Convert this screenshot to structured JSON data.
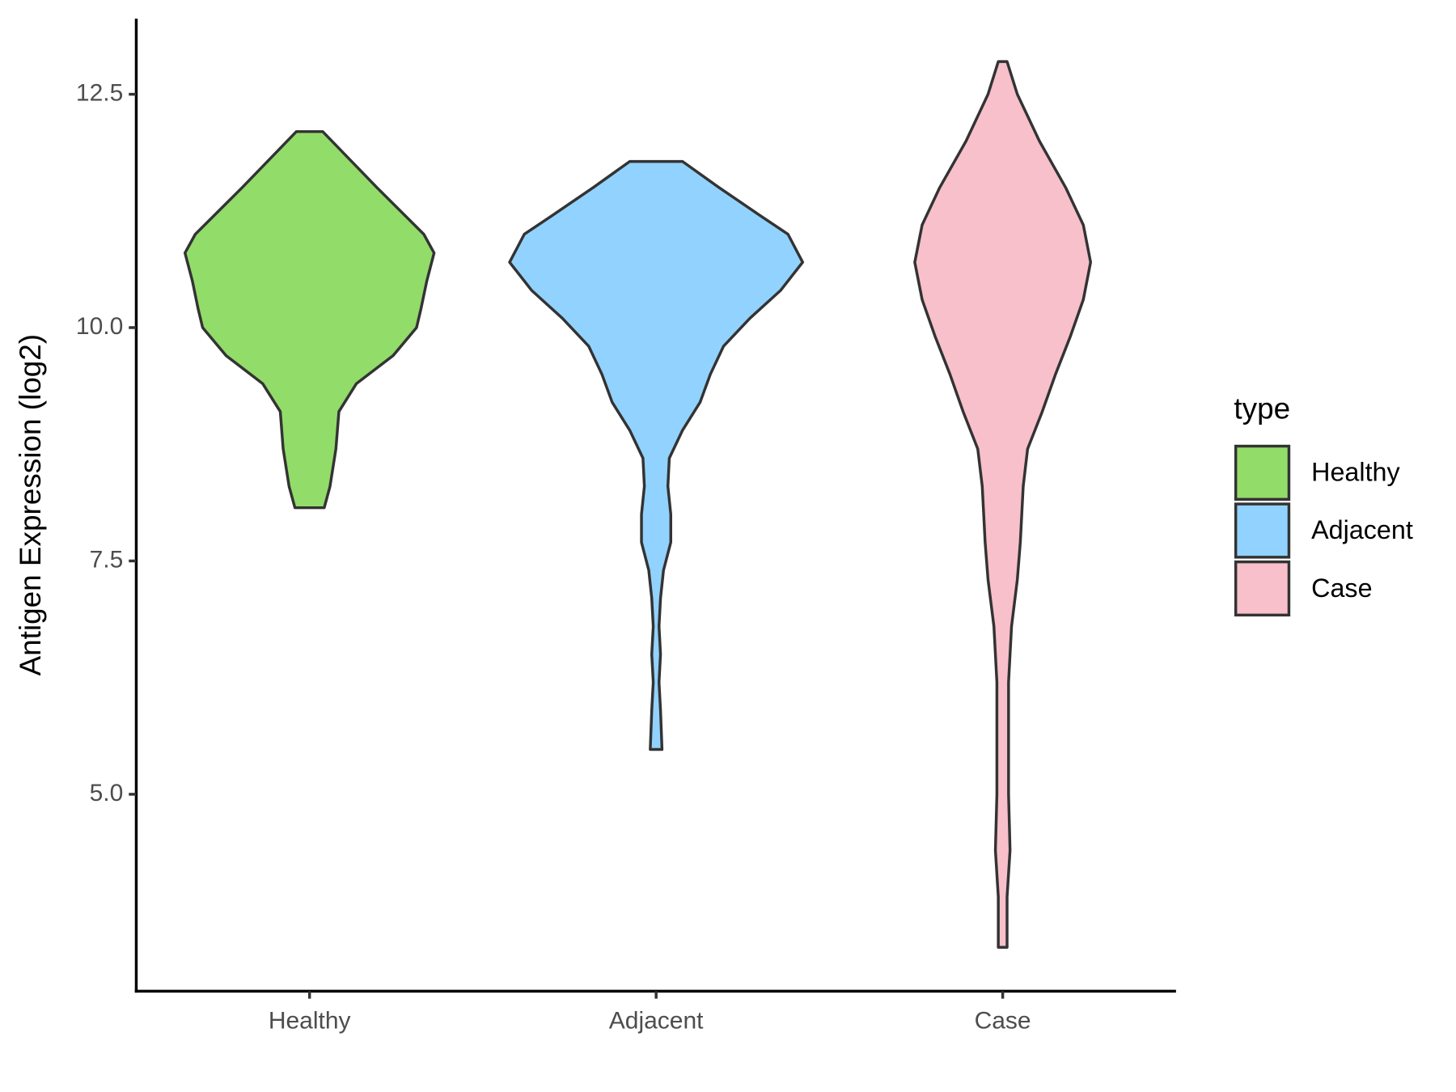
{
  "chart_data": {
    "type": "violin",
    "y_label": "Antigen Expression (log2)",
    "categories": [
      "Healthy",
      "Adjacent",
      "Case"
    ],
    "legend_title": "type",
    "legend": "right",
    "ylim": [
      2.89,
      13.31
    ],
    "yticks": [
      {
        "value": 5,
        "label": "5.0"
      },
      {
        "value": 7.5,
        "label": "7.5"
      },
      {
        "value": 10,
        "label": "10.0"
      },
      {
        "value": 12.5,
        "label": "12.5"
      }
    ],
    "series": [
      {
        "name": "Healthy",
        "color": "#92dc6a",
        "y": [
          12.1,
          11.5,
          11.0,
          10.8,
          10.5,
          10.2,
          10.0,
          9.7,
          9.4,
          9.1,
          8.7,
          8.3,
          8.07
        ],
        "density": [
          0.09,
          0.46,
          0.78,
          0.85,
          0.8,
          0.76,
          0.73,
          0.57,
          0.32,
          0.2,
          0.18,
          0.14,
          0.1
        ]
      },
      {
        "name": "Adjacent",
        "color": "#92d2fe",
        "y": [
          11.78,
          11.5,
          11.2,
          11.0,
          10.7,
          10.4,
          10.1,
          9.8,
          9.5,
          9.2,
          8.9,
          8.6,
          8.3,
          8.0,
          7.7,
          7.4,
          7.1,
          6.8,
          6.5,
          6.2,
          5.9,
          5.48
        ],
        "density": [
          0.18,
          0.43,
          0.71,
          0.9,
          1.0,
          0.85,
          0.64,
          0.46,
          0.37,
          0.3,
          0.18,
          0.09,
          0.08,
          0.1,
          0.1,
          0.05,
          0.03,
          0.02,
          0.03,
          0.02,
          0.03,
          0.04
        ]
      },
      {
        "name": "Case",
        "color": "#f7c0cb",
        "y": [
          12.85,
          12.5,
          12.0,
          11.5,
          11.1,
          10.7,
          10.3,
          9.9,
          9.5,
          9.1,
          8.7,
          8.3,
          7.7,
          7.3,
          6.8,
          6.2,
          5.6,
          5.0,
          4.4,
          3.9,
          3.36
        ],
        "density": [
          0.03,
          0.1,
          0.25,
          0.43,
          0.55,
          0.6,
          0.55,
          0.46,
          0.36,
          0.27,
          0.17,
          0.14,
          0.12,
          0.1,
          0.06,
          0.04,
          0.04,
          0.04,
          0.05,
          0.03,
          0.03
        ]
      }
    ]
  }
}
